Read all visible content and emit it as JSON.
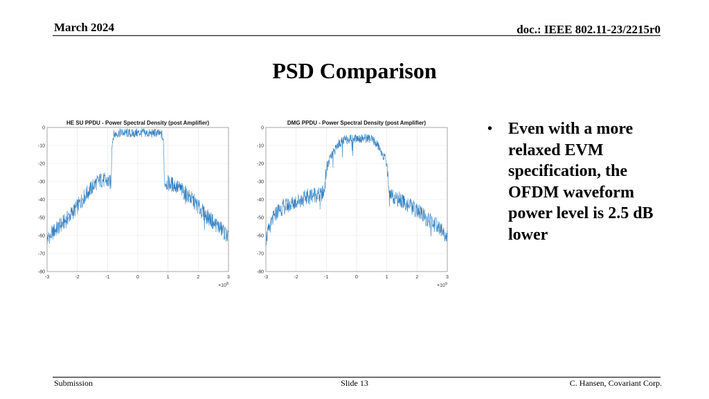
{
  "header": {
    "date": "March 2024",
    "doc": "doc.: IEEE 802.11-23/2215r0"
  },
  "slide_title": "PSD Comparison",
  "bullets": [
    "Even with a more relaxed EVM specification, the OFDM waveform power level is 2.5 dB lower"
  ],
  "footer": {
    "left": "Submission",
    "center": "Slide 13",
    "right": "C. Hansen, Covariant Corp."
  },
  "chart_data": [
    {
      "type": "line",
      "title": "HE SU PPDU - Power Spectral Density (post Amplifier)",
      "xlabel": "",
      "ylabel": "",
      "x_exponent_label": "×10",
      "x_exponent": "8",
      "xlim": [
        -3,
        3
      ],
      "ylim": [
        -80,
        0
      ],
      "xticks": [
        "-3",
        "-2",
        "-1",
        "0",
        "1",
        "2",
        "3"
      ],
      "yticks": [
        "0",
        "-10",
        "-20",
        "-30",
        "-40",
        "-50",
        "-60",
        "-70",
        "-80"
      ],
      "grid": true,
      "line_color": "#2f7ec1",
      "series": [
        {
          "x": [
            -3.0,
            -2.8,
            -2.6,
            -2.4,
            -2.2,
            -2.0,
            -1.8,
            -1.6,
            -1.4,
            -1.2,
            -1.0,
            -0.88,
            -0.86,
            -0.8,
            -0.6,
            -0.4,
            -0.2,
            0.0,
            0.2,
            0.4,
            0.6,
            0.8,
            0.86,
            0.88,
            1.0,
            1.2,
            1.4,
            1.6,
            1.8,
            2.0,
            2.2,
            2.4,
            2.6,
            2.8,
            3.0
          ],
          "y": [
            -62,
            -58,
            -55,
            -52,
            -48,
            -44,
            -39,
            -35,
            -31,
            -29,
            -30,
            -31,
            -10,
            -4,
            -3,
            -3,
            -3.5,
            -3,
            -3,
            -3.5,
            -3,
            -4,
            -10,
            -30,
            -31,
            -32,
            -34,
            -37,
            -40,
            -44,
            -48,
            -51,
            -54,
            -57,
            -61
          ]
        }
      ]
    },
    {
      "type": "line",
      "title": "DMG PPDU - Power Spectral Density (post Amplifier)",
      "xlabel": "",
      "ylabel": "",
      "x_exponent_label": "×10",
      "x_exponent": "9",
      "xlim": [
        -3,
        3
      ],
      "ylim": [
        -80,
        0
      ],
      "xticks": [
        "-3",
        "-2",
        "-1",
        "0",
        "1",
        "2",
        "3"
      ],
      "yticks": [
        "0",
        "-10",
        "-20",
        "-30",
        "-40",
        "-50",
        "-60",
        "-70",
        "-80"
      ],
      "grid": true,
      "line_color": "#2f7ec1",
      "series": [
        {
          "x": [
            -3.0,
            -2.9,
            -2.8,
            -2.6,
            -2.4,
            -2.2,
            -2.0,
            -1.8,
            -1.6,
            -1.4,
            -1.2,
            -1.08,
            -1.0,
            -0.9,
            -0.8,
            -0.7,
            -0.6,
            -0.4,
            -0.2,
            0.0,
            0.2,
            0.4,
            0.6,
            0.7,
            0.8,
            0.9,
            1.0,
            1.08,
            1.2,
            1.4,
            1.6,
            1.8,
            2.0,
            2.2,
            2.4,
            2.6,
            2.8,
            3.0
          ],
          "y": [
            -62,
            -57,
            -52,
            -46,
            -44,
            -43,
            -41,
            -40,
            -38,
            -37,
            -38,
            -36,
            -24,
            -18,
            -15,
            -12,
            -9,
            -7,
            -6,
            -6,
            -6,
            -6,
            -8,
            -10,
            -13,
            -16,
            -20,
            -36,
            -38,
            -40,
            -42,
            -44,
            -46,
            -49,
            -52,
            -54,
            -57,
            -61
          ]
        }
      ]
    }
  ]
}
